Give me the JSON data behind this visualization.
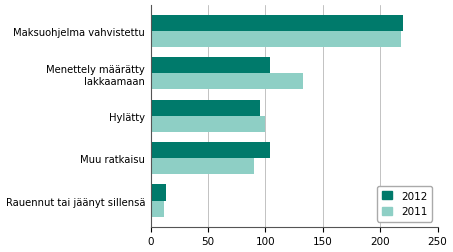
{
  "categories": [
    "Maksuohjelma vahvistettu",
    "Menettely määrätty\nlakkaamaan",
    "Hylätty",
    "Muu ratkaisu",
    "Rauennut tai jäänyt sillensä"
  ],
  "values_2012": [
    220,
    104,
    95,
    104,
    13
  ],
  "values_2011": [
    218,
    133,
    100,
    90,
    12
  ],
  "color_2012": "#007a6b",
  "color_2011": "#8ecfc5",
  "legend_2012": "2012",
  "legend_2011": "2011",
  "xlim": [
    0,
    250
  ],
  "xticks": [
    0,
    50,
    100,
    150,
    200,
    250
  ],
  "bar_height": 0.38,
  "background_color": "#ffffff"
}
